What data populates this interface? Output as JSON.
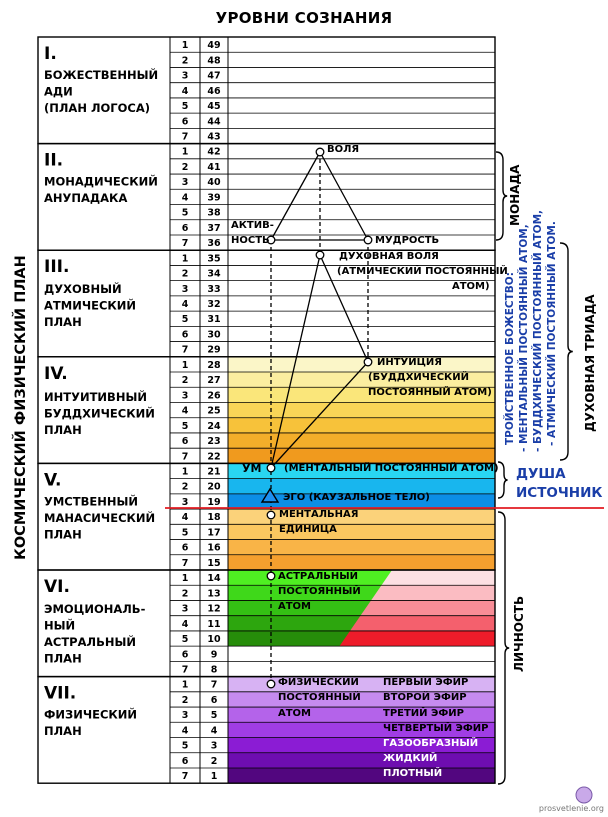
{
  "title": "УРОВНИ СОЗНАНИЯ",
  "left_label": "КОСМИЧЕСКИЙ ФИЗИЧЕСКИЙ ПЛАН",
  "planes": [
    {
      "roman": "I.",
      "name": [
        "БОЖЕСТВЕННЫЙ",
        "АДИ",
        "(ПЛАН ЛОГОСА)"
      ],
      "levels": [
        49,
        48,
        47,
        46,
        45,
        44,
        43
      ]
    },
    {
      "roman": "II.",
      "name": [
        "МОНАДИЧЕСКИЙ",
        "АНУПАДАКА"
      ],
      "levels": [
        42,
        41,
        40,
        39,
        38,
        37,
        36
      ]
    },
    {
      "roman": "III.",
      "name": [
        "ДУХОВНЫЙ",
        "АТМИЧЕСКИЙ",
        "ПЛАН"
      ],
      "levels": [
        35,
        34,
        33,
        32,
        31,
        30,
        29
      ]
    },
    {
      "roman": "IV.",
      "name": [
        "ИНТУИТИВНЫЙ",
        "БУДДХИЧЕСКИЙ",
        "ПЛАН"
      ],
      "levels": [
        28,
        27,
        26,
        25,
        24,
        23,
        22
      ]
    },
    {
      "roman": "V.",
      "name": [
        "УМСТВЕННЫЙ",
        "МАНАСИЧЕСКИЙ",
        "ПЛАН"
      ],
      "levels": [
        21,
        20,
        19,
        18,
        17,
        16,
        15
      ]
    },
    {
      "roman": "VI.",
      "name": [
        "ЭМОЦИОНАЛЬ-",
        "НЫЙ",
        "АСТРАЛЬНЫЙ",
        "ПЛАН"
      ],
      "levels": [
        14,
        13,
        12,
        11,
        10,
        9,
        8
      ]
    },
    {
      "roman": "VII.",
      "name": [
        "ФИЗИЧЕСКИЙ",
        "ПЛАН"
      ],
      "levels": [
        7,
        6,
        5,
        4,
        3,
        2,
        1
      ]
    }
  ],
  "colors": {
    "buddhic": [
      "#fbf6c8",
      "#fbeea0",
      "#fae67a",
      "#f9d557",
      "#f7c23a",
      "#f3ae2a",
      "#f09a1e"
    ],
    "mental_upper": [
      "#29d6f2",
      "#18b6ee",
      "#0c8ee6"
    ],
    "mental_lower": [
      "#fbd27a",
      "#fbc760",
      "#f9b447",
      "#f59f2e"
    ],
    "astral_green": [
      "#4fef22",
      "#3fd81a",
      "#34c014",
      "#2da60e",
      "#268d0a"
    ],
    "astral_red": [
      "#fde0e3",
      "#fbbcc2",
      "#f88d97",
      "#f4606d",
      "#ee1c2a"
    ],
    "physical": [
      "#d7b2f3",
      "#c68bef",
      "#b463ea",
      "#a03de4",
      "#8b1cd4",
      "#6e0db0",
      "#52067f"
    ],
    "red_line": "#e31b23",
    "blue_text": "#1a3ea8"
  },
  "diagram_labels": {
    "will": "ВОЛЯ",
    "active_1": "АКТИВ-",
    "active_2": "НОСТЬ",
    "wisdom": "МУДРОСТЬ",
    "spiritual_will": "ДУХОВНАЯ ВОЛЯ",
    "atmic_1": "(АТМИЧЕСКИЙ ПОСТОЯННЫЙ",
    "atmic_2": "АТОМ)",
    "intuition": "ИНТУИЦИЯ",
    "buddhic_1": "(БУДДХИЧЕСКИЙ",
    "buddhic_2": "ПОСТОЯННЫЙ АТОМ)",
    "mind": "УМ",
    "mental_atom": "(МЕНТАЛЬНЫЙ ПОСТОЯННЫЙ АТОМ)",
    "ego": "ЭГО (КАУЗАЛЬНОЕ ТЕЛО)",
    "mental_unit_1": "МЕНТАЛЬНАЯ",
    "mental_unit_2": "ЕДИНИЦА",
    "astral_1": "АСТРАЛЬНЫЙ",
    "astral_2": "ПОСТОЯННЫЙ",
    "astral_3": "АТОМ",
    "physical_1": "ФИЗИЧЕСКИЙ",
    "physical_2": "ПОСТОЯННЫЙ",
    "physical_3": "АТОМ",
    "ether_1": "ПЕРВЫЙ ЭФИР",
    "ether_2": "ВТОРОЙ ЭФИР",
    "ether_3": "ТРЕТИЙ ЭФИР",
    "ether_4": "ЧЕТВЕРТЫЙ  ЭФИР",
    "gaseous": "ГАЗООБРАЗНЫЙ",
    "liquid": "ЖИДКИЙ",
    "solid": "ПЛОТНЫЙ"
  },
  "right_labels": {
    "monad": "МОНАДА",
    "triad": "ДУХОВНАЯ ТРИАДА",
    "deity_1": "ТРОЙСТВЕННОЕ БОЖЕСТВО:",
    "deity_2": "- МЕНТАЛЬНЫЙ ПОСТОЯННЫЙ АТОМ,",
    "deity_3": "- БУДДХИЧЕСКИЙ ПОСТОЯННЫЙ АТОМ,",
    "deity_4": "- АТМИЧЕСКИЙ ПОСТОЯННЫЙ АТОМ.",
    "soul": "ДУША",
    "source": "ИСТОЧНИК",
    "personality": "ЛИЧНОСТЬ"
  },
  "watermark": "prosvetlenie.org"
}
